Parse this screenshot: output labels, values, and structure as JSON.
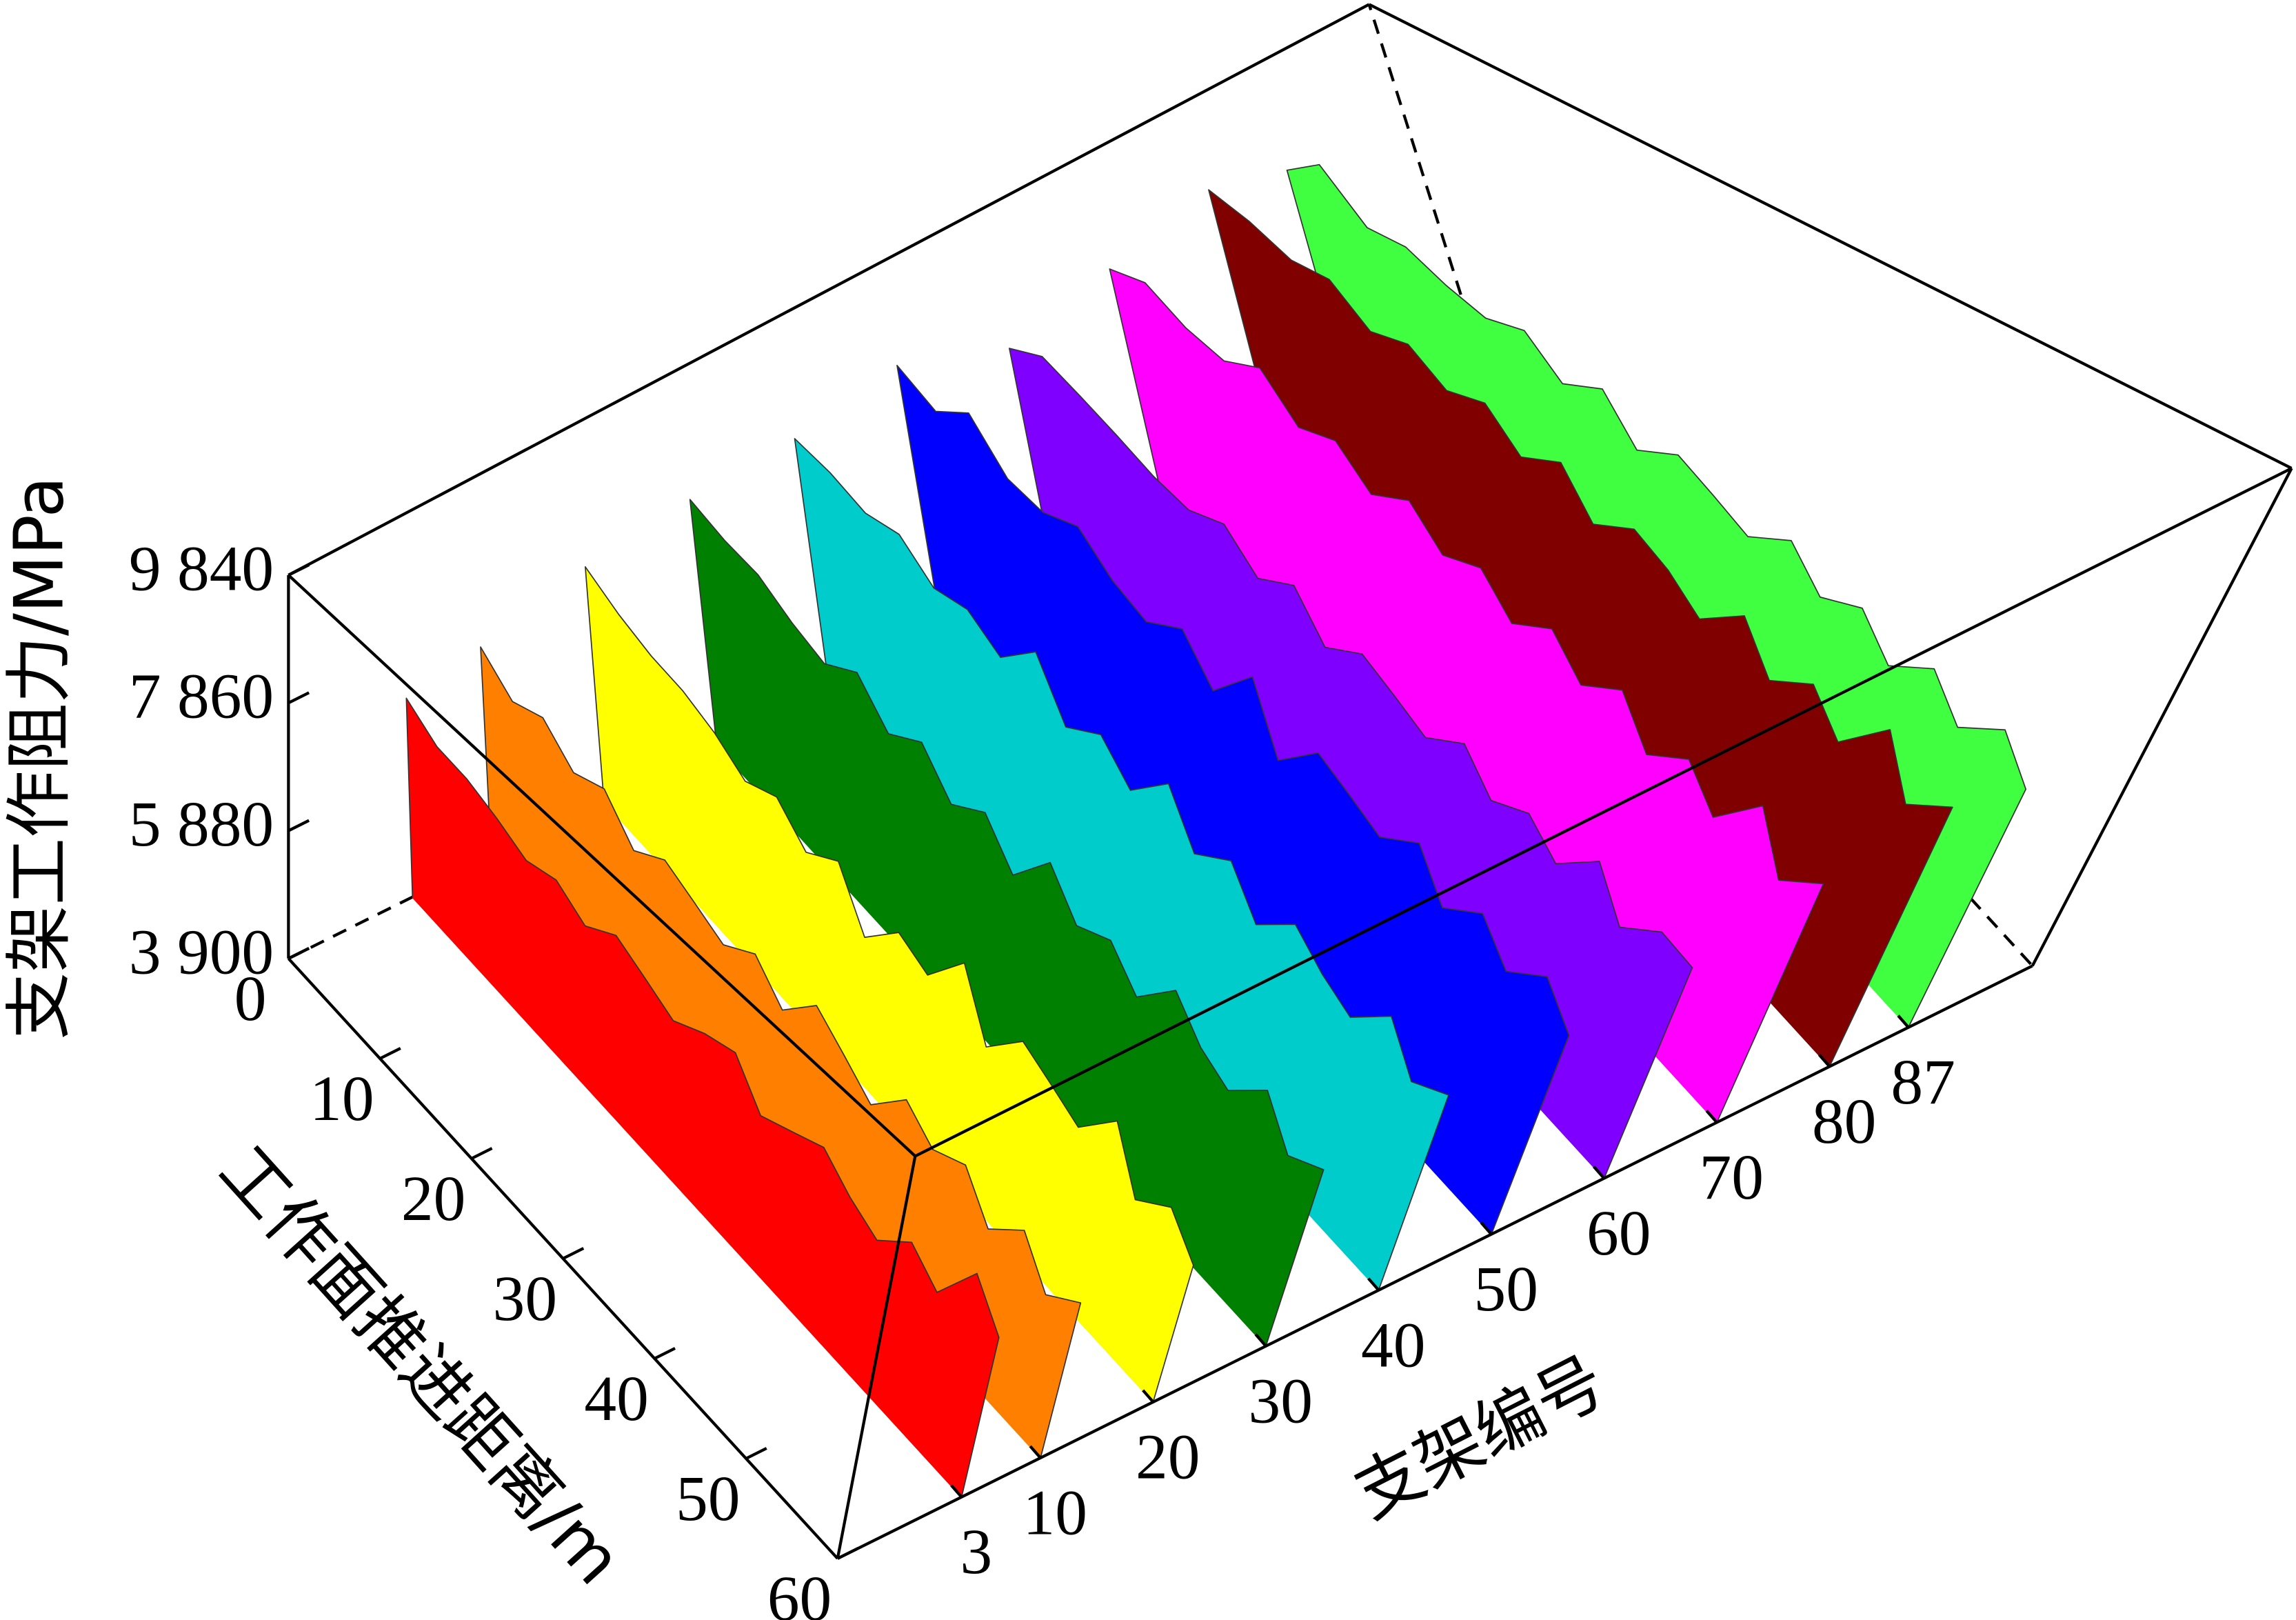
{
  "chart_data": {
    "type": "waterfall3d",
    "x_label": "工作面推进距离/m",
    "y_label": "支架编号",
    "z_label": "支架工作阻力/MPa",
    "x": [
      0,
      3,
      6,
      9,
      12,
      15,
      18,
      21,
      24,
      27,
      30,
      33,
      36,
      39,
      42,
      45,
      48,
      51,
      54,
      57,
      60
    ],
    "xlim": [
      0,
      60
    ],
    "xticks": [
      0,
      10,
      20,
      30,
      40,
      50,
      60
    ],
    "ylim": [
      -8,
      98
    ],
    "yticks": [
      3,
      10,
      20,
      30,
      40,
      50,
      60,
      70,
      80,
      87
    ],
    "zlim": [
      3900,
      9840
    ],
    "zticks": [
      {
        "value": 3900,
        "label": "3 900"
      },
      {
        "value": 5880,
        "label": "5 880"
      },
      {
        "value": 7860,
        "label": "7 860"
      },
      {
        "value": 9840,
        "label": "9 840"
      }
    ],
    "series": [
      {
        "support": 3,
        "color": "#ff0000",
        "values": [
          7000,
          6700,
          6650,
          6500,
          6300,
          6450,
          6200,
          6500,
          6300,
          6100,
          6350,
          6500,
          6000,
          6200,
          6400,
          6100,
          5900,
          6300,
          6000,
          6700,
          6200
        ]
      },
      {
        "support": 10,
        "color": "#ff8000",
        "values": [
          7200,
          6800,
          7000,
          6600,
          6800,
          6300,
          6600,
          6400,
          6200,
          6500,
          6100,
          6600,
          6300,
          6000,
          6500,
          6200,
          6400,
          5900,
          6300,
          5800,
          6100
        ]
      },
      {
        "support": 20,
        "color": "#ffff00",
        "values": [
          7600,
          7300,
          7100,
          7000,
          6800,
          6500,
          6700,
          6300,
          6600,
          5900,
          6400,
          6200,
          6800,
          6000,
          6500,
          6300,
          6100,
          6600,
          5900,
          6200,
          5800
        ]
      },
      {
        "support": 30,
        "color": "#008000",
        "values": [
          7800,
          7600,
          7500,
          7200,
          7000,
          7300,
          6800,
          7100,
          6600,
          6900,
          6400,
          7000,
          6500,
          6700,
          6300,
          6800,
          6400,
          6200,
          6600,
          6100,
          6300
        ]
      },
      {
        "support": 40,
        "color": "#00cccc",
        "values": [
          7900,
          7800,
          7600,
          7700,
          7300,
          7400,
          7100,
          7600,
          6900,
          7200,
          6800,
          7300,
          6700,
          7000,
          6500,
          6900,
          6600,
          6400,
          6800,
          6300,
          6500
        ]
      },
      {
        "support": 50,
        "color": "#0000ff",
        "values": [
          8200,
          7900,
          8300,
          7700,
          7600,
          7800,
          7400,
          7200,
          7500,
          7000,
          7600,
          6800,
          7300,
          7100,
          6900,
          7200,
          6700,
          7000,
          6600,
          6900,
          6500
        ]
      },
      {
        "support": 60,
        "color": "#8000ff",
        "values": [
          7600,
          7900,
          7700,
          7500,
          7300,
          7200,
          7400,
          7000,
          7300,
          6800,
          7100,
          6900,
          6700,
          7000,
          6600,
          6800,
          6500,
          6900,
          6400,
          6700,
          6600
        ]
      },
      {
        "support": 70,
        "color": "#ff00ff",
        "values": [
          8000,
          8200,
          7900,
          7800,
          8100,
          7600,
          7800,
          7400,
          7700,
          7300,
          7500,
          7100,
          7400,
          7000,
          7300,
          6800,
          7100,
          6700,
          7200,
          6600,
          6900
        ]
      },
      {
        "support": 80,
        "color": "#800000",
        "values": [
          8400,
          8300,
          8100,
          8200,
          7800,
          8000,
          7700,
          7900,
          7500,
          7800,
          7300,
          7600,
          7400,
          7100,
          7500,
          7000,
          7300,
          6900,
          7400,
          6800,
          7100
        ]
      },
      {
        "support": 87,
        "color": "#40ff40",
        "values": [
          8100,
          8600,
          8000,
          8100,
          7900,
          7800,
          8000,
          7600,
          7900,
          7400,
          7700,
          7500,
          7300,
          7600,
          7200,
          7400,
          7000,
          7300,
          6900,
          7200,
          6800
        ]
      }
    ]
  }
}
